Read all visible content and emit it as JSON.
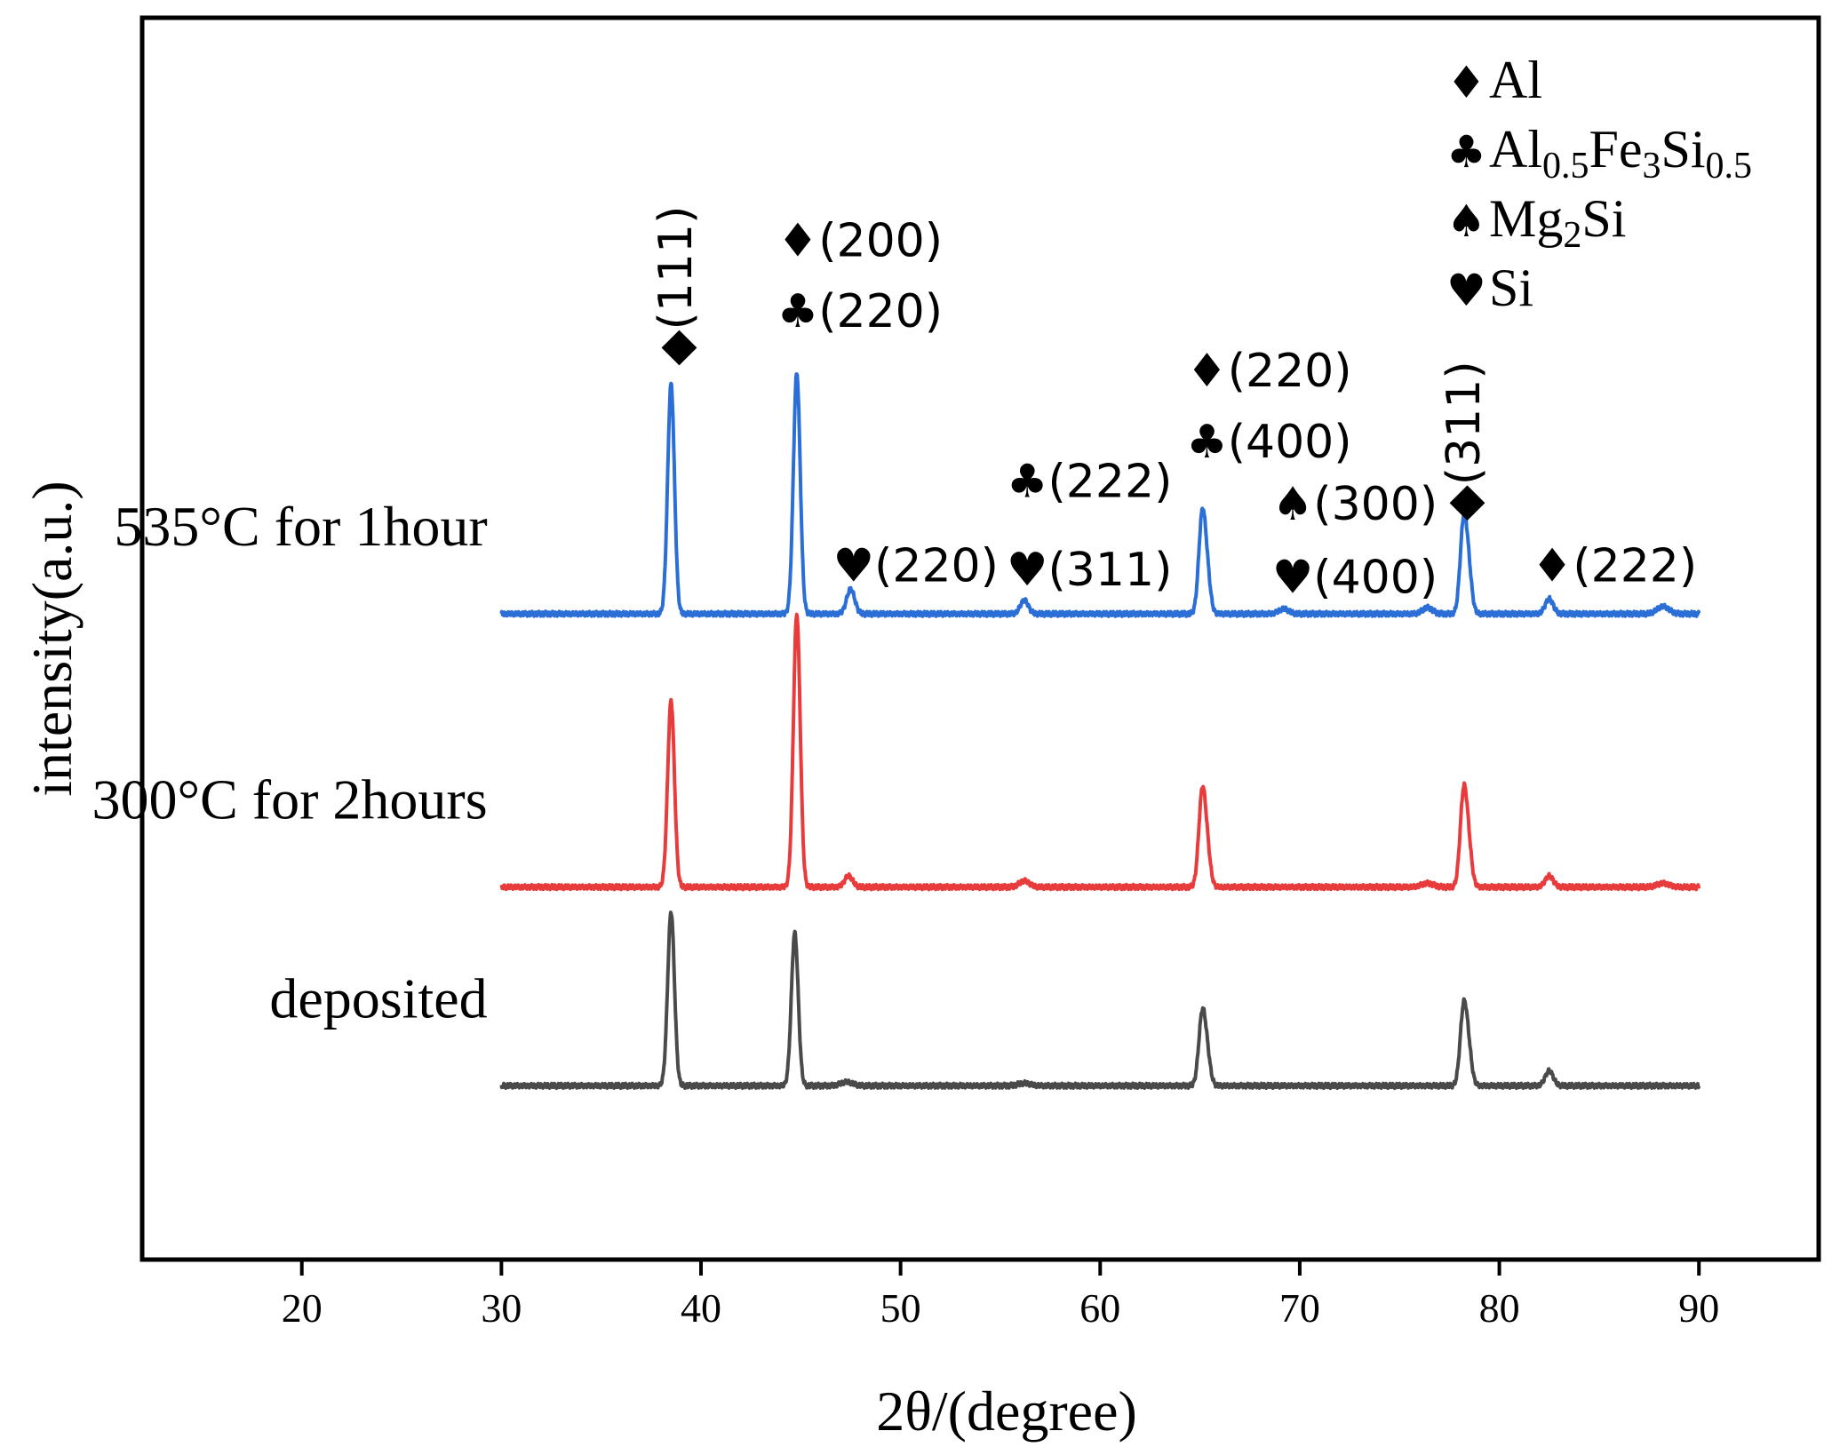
{
  "chart_data": {
    "type": "line",
    "title": "",
    "xlabel": "2θ/(degree)",
    "ylabel": "intensity(a.u.)",
    "xlim": [
      12,
      96
    ],
    "ylim": [
      -5,
      95
    ],
    "xticks": [
      20,
      30,
      40,
      50,
      60,
      70,
      80,
      90
    ],
    "x_range": [
      30,
      90
    ],
    "grid": false,
    "series": [
      {
        "name": "535°C for 1hour",
        "color": "#2b6fd6",
        "baseline": 47,
        "peaks": [
          [
            38.5,
            18.5,
            0.17
          ],
          [
            44.8,
            19.4,
            0.17
          ],
          [
            47.5,
            2.0,
            0.2
          ],
          [
            56.2,
            1.1,
            0.2
          ],
          [
            65.1,
            7.3,
            0.17
          ],
          [
            65.35,
            3.0,
            0.17
          ],
          [
            69.2,
            0.4,
            0.25
          ],
          [
            76.4,
            0.5,
            0.25
          ],
          [
            78.2,
            6.8,
            0.17
          ],
          [
            78.45,
            3.2,
            0.17
          ],
          [
            82.5,
            1.2,
            0.2
          ],
          [
            88.2,
            0.6,
            0.3
          ]
        ]
      },
      {
        "name": "300°C for 2hours",
        "color": "#e83c3c",
        "baseline": 25,
        "peaks": [
          [
            38.5,
            15.0,
            0.17
          ],
          [
            44.8,
            22.0,
            0.17
          ],
          [
            47.4,
            0.9,
            0.2
          ],
          [
            56.2,
            0.5,
            0.25
          ],
          [
            65.1,
            7.0,
            0.17
          ],
          [
            65.35,
            2.8,
            0.17
          ],
          [
            76.4,
            0.3,
            0.3
          ],
          [
            78.2,
            7.0,
            0.17
          ],
          [
            78.45,
            3.0,
            0.17
          ],
          [
            82.5,
            0.9,
            0.2
          ],
          [
            88.2,
            0.3,
            0.3
          ]
        ]
      },
      {
        "name": "deposited",
        "color": "#4a4a4a",
        "baseline": 9,
        "peaks": [
          [
            38.5,
            14.0,
            0.17
          ],
          [
            44.7,
            12.3,
            0.17
          ],
          [
            47.3,
            0.3,
            0.3
          ],
          [
            56.2,
            0.2,
            0.3
          ],
          [
            65.1,
            5.3,
            0.17
          ],
          [
            65.35,
            2.3,
            0.17
          ],
          [
            78.2,
            5.8,
            0.17
          ],
          [
            78.45,
            2.6,
            0.17
          ],
          [
            82.5,
            1.2,
            0.2
          ]
        ]
      }
    ],
    "annotations": [
      {
        "text": "◆(111)",
        "x": 38.7,
        "y": 67,
        "rotated": true
      },
      {
        "text": "♦(200)",
        "x": 44.7,
        "y": 75.8
      },
      {
        "text": "♣(220)",
        "x": 44.7,
        "y": 70.1
      },
      {
        "text": "♥(220)",
        "x": 47.5,
        "y": 49.6
      },
      {
        "text": "♣(222)",
        "x": 56.2,
        "y": 56.4
      },
      {
        "text": "♥(311)",
        "x": 56.2,
        "y": 49.3
      },
      {
        "text": "♦(220)",
        "x": 65.2,
        "y": 65.3
      },
      {
        "text": "♣(400)",
        "x": 65.2,
        "y": 59.6
      },
      {
        "text": "♠(300)",
        "x": 69.5,
        "y": 54.6
      },
      {
        "text": "♥(400)",
        "x": 69.5,
        "y": 48.7
      },
      {
        "text": "◆(311)",
        "x": 78.2,
        "y": 54.5,
        "rotated": true
      },
      {
        "text": "♦(222)",
        "x": 82.5,
        "y": 49.6
      }
    ],
    "legend": {
      "position": "top-right",
      "entries": [
        {
          "symbol": "♦",
          "label": "Al"
        },
        {
          "symbol": "♣",
          "label": "Al",
          "sub1": "0.5",
          "mid": "Fe",
          "sub2": "3",
          "mid2": "Si",
          "sub3": "0.5"
        },
        {
          "symbol": "♠",
          "label": "Mg",
          "sub1": "2",
          "mid": "Si"
        },
        {
          "symbol": "♥",
          "label": "Si"
        }
      ]
    }
  }
}
